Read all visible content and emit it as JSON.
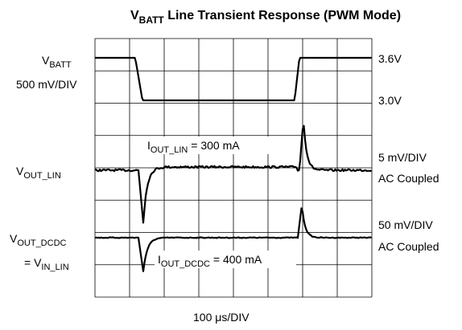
{
  "title": {
    "main": "V",
    "sub": "BATT",
    "rest": " Line Transient Response (PWM Mode)"
  },
  "left": {
    "vbatt": {
      "main": "V",
      "sub": "BATT"
    },
    "vbatt_scale": "500 mV/DIV",
    "vout_lin": {
      "main": "V",
      "sub": "OUT_LIN"
    },
    "vout_dcdc": {
      "main": "V",
      "sub": "OUT_DCDC"
    },
    "vin_lin": {
      "pre": "= V",
      "sub": "IN_LIN"
    }
  },
  "right": {
    "high": "3.6V",
    "low": "3.0V",
    "lin_scale": "5 mV/DIV",
    "lin_coupling": "AC Coupled",
    "dcdc_scale": "50 mV/DIV",
    "dcdc_coupling": "AC Coupled"
  },
  "annotations": {
    "iout_lin": {
      "main": "I",
      "sub": "OUT_LIN",
      "rest": " = 300 mA"
    },
    "iout_dcdc": {
      "main": "I",
      "sub": "OUT_DCDC",
      "rest": " = 400 mA"
    }
  },
  "time_scale": "100 μs/DIV"
}
